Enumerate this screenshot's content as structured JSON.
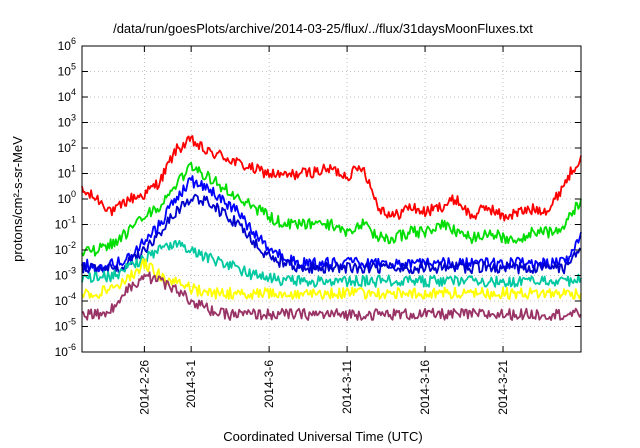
{
  "chart_data": {
    "type": "line",
    "title": "/data/run/goesPlots/archive/2014-03-25/flux/../flux/31daysMoonFluxes.txt",
    "xlabel": "Coordinated Universal Time (UTC)",
    "ylabel": "protons/cm²-s-sr-MeV",
    "yscale": "log",
    "ylim": [
      1e-06,
      1000000.0
    ],
    "xlim": [
      "2014-02-22",
      "2014-03-26"
    ],
    "x_ticks": [
      "2014-2-26",
      "2014-3-1",
      "2014-3-6",
      "2014-3-11",
      "2014-3-16",
      "2014-3-21"
    ],
    "y_ticks": [
      {
        "base": "10",
        "exp": "-6"
      },
      {
        "base": "10",
        "exp": "-5"
      },
      {
        "base": "10",
        "exp": "-4"
      },
      {
        "base": "10",
        "exp": "-3"
      },
      {
        "base": "10",
        "exp": "-2"
      },
      {
        "base": "10",
        "exp": "-1"
      },
      {
        "base": "10",
        "exp": "0"
      },
      {
        "base": "10",
        "exp": "1"
      },
      {
        "base": "10",
        "exp": "2"
      },
      {
        "base": "10",
        "exp": "3"
      },
      {
        "base": "10",
        "exp": "4"
      },
      {
        "base": "10",
        "exp": "5"
      },
      {
        "base": "10",
        "exp": "6"
      }
    ],
    "grid": true,
    "series": [
      {
        "color": "#ff0000",
        "x": [
          "2014-02-22",
          "2014-02-23",
          "2014-02-24",
          "2014-02-25",
          "2014-02-26",
          "2014-02-27",
          "2014-02-28",
          "2014-03-01",
          "2014-03-02",
          "2014-03-03",
          "2014-03-04",
          "2014-03-05",
          "2014-03-06",
          "2014-03-07",
          "2014-03-08",
          "2014-03-09",
          "2014-03-10",
          "2014-03-11",
          "2014-03-12",
          "2014-03-13",
          "2014-03-14",
          "2014-03-15",
          "2014-03-16",
          "2014-03-17",
          "2014-03-18",
          "2014-03-19",
          "2014-03-20",
          "2014-03-21",
          "2014-03-22",
          "2014-03-23",
          "2014-03-24",
          "2014-03-25",
          "2014-03-26"
        ],
        "values": [
          2,
          1,
          0.3,
          1,
          1.5,
          5,
          80,
          200,
          70,
          50,
          25,
          15,
          10,
          8,
          10,
          12,
          15,
          8,
          20,
          0.5,
          0.2,
          0.5,
          0.3,
          0.5,
          1,
          0.2,
          0.5,
          0.2,
          0.3,
          0.4,
          0.4,
          5,
          50
        ]
      },
      {
        "color": "#00dd00",
        "x": [
          "2014-02-22",
          "2014-02-23",
          "2014-02-24",
          "2014-02-25",
          "2014-02-26",
          "2014-02-27",
          "2014-02-28",
          "2014-03-01",
          "2014-03-02",
          "2014-03-03",
          "2014-03-04",
          "2014-03-05",
          "2014-03-06",
          "2014-03-07",
          "2014-03-08",
          "2014-03-09",
          "2014-03-10",
          "2014-03-11",
          "2014-03-12",
          "2014-03-13",
          "2014-03-14",
          "2014-03-15",
          "2014-03-16",
          "2014-03-17",
          "2014-03-18",
          "2014-03-19",
          "2014-03-20",
          "2014-03-21",
          "2014-03-22",
          "2014-03-23",
          "2014-03-24",
          "2014-03-25",
          "2014-03-26"
        ],
        "values": [
          0.01,
          0.01,
          0.02,
          0.05,
          0.2,
          0.5,
          3,
          20,
          8,
          3,
          1,
          0.5,
          0.2,
          0.1,
          0.1,
          0.1,
          0.1,
          0.05,
          0.1,
          0.03,
          0.03,
          0.05,
          0.05,
          0.1,
          0.05,
          0.03,
          0.05,
          0.03,
          0.03,
          0.05,
          0.05,
          0.1,
          1
        ]
      },
      {
        "color": "#0000ff",
        "x": [
          "2014-02-22",
          "2014-02-23",
          "2014-02-24",
          "2014-02-25",
          "2014-02-26",
          "2014-02-27",
          "2014-02-28",
          "2014-03-01",
          "2014-03-02",
          "2014-03-03",
          "2014-03-04",
          "2014-03-05",
          "2014-03-06",
          "2014-03-07",
          "2014-03-08",
          "2014-03-09",
          "2014-03-10",
          "2014-03-11",
          "2014-03-12",
          "2014-03-13",
          "2014-03-14",
          "2014-03-15",
          "2014-03-16",
          "2014-03-17",
          "2014-03-18",
          "2014-03-19",
          "2014-03-20",
          "2014-03-21",
          "2014-03-22",
          "2014-03-23",
          "2014-03-24",
          "2014-03-25",
          "2014-03-26"
        ],
        "values": [
          0.003,
          0.002,
          0.003,
          0.005,
          0.02,
          0.1,
          1,
          5,
          3,
          1,
          0.3,
          0.05,
          0.01,
          0.005,
          0.003,
          0.003,
          0.003,
          0.003,
          0.003,
          0.003,
          0.003,
          0.003,
          0.003,
          0.003,
          0.003,
          0.003,
          0.003,
          0.003,
          0.003,
          0.003,
          0.003,
          0.003,
          0.05
        ]
      },
      {
        "color": "#0000cc",
        "x": [
          "2014-02-22",
          "2014-02-23",
          "2014-02-24",
          "2014-02-25",
          "2014-02-26",
          "2014-02-27",
          "2014-02-28",
          "2014-03-01",
          "2014-03-02",
          "2014-03-03",
          "2014-03-04",
          "2014-03-05",
          "2014-03-06",
          "2014-03-07",
          "2014-03-08",
          "2014-03-09",
          "2014-03-10",
          "2014-03-11",
          "2014-03-12",
          "2014-03-13",
          "2014-03-14",
          "2014-03-15",
          "2014-03-16",
          "2014-03-17",
          "2014-03-18",
          "2014-03-19",
          "2014-03-20",
          "2014-03-21",
          "2014-03-22",
          "2014-03-23",
          "2014-03-24",
          "2014-03-25",
          "2014-03-26"
        ],
        "values": [
          0.002,
          0.002,
          0.002,
          0.003,
          0.01,
          0.05,
          0.3,
          1,
          0.8,
          0.3,
          0.1,
          0.02,
          0.005,
          0.003,
          0.002,
          0.002,
          0.002,
          0.002,
          0.002,
          0.002,
          0.002,
          0.002,
          0.002,
          0.002,
          0.002,
          0.002,
          0.002,
          0.002,
          0.002,
          0.002,
          0.002,
          0.002,
          0.01
        ]
      },
      {
        "color": "#00c8a0",
        "x": [
          "2014-02-22",
          "2014-02-23",
          "2014-02-24",
          "2014-02-25",
          "2014-02-26",
          "2014-02-27",
          "2014-02-28",
          "2014-03-01",
          "2014-03-02",
          "2014-03-03",
          "2014-03-04",
          "2014-03-05",
          "2014-03-06",
          "2014-03-07",
          "2014-03-08",
          "2014-03-09",
          "2014-03-10",
          "2014-03-11",
          "2014-03-12",
          "2014-03-13",
          "2014-03-14",
          "2014-03-15",
          "2014-03-16",
          "2014-03-17",
          "2014-03-18",
          "2014-03-19",
          "2014-03-20",
          "2014-03-21",
          "2014-03-22",
          "2014-03-23",
          "2014-03-24",
          "2014-03-25",
          "2014-03-26"
        ],
        "values": [
          0.0008,
          0.0008,
          0.001,
          0.002,
          0.005,
          0.01,
          0.02,
          0.01,
          0.005,
          0.003,
          0.002,
          0.001,
          0.0008,
          0.0006,
          0.0006,
          0.0006,
          0.0006,
          0.0006,
          0.0006,
          0.0006,
          0.0006,
          0.0006,
          0.0006,
          0.0006,
          0.0006,
          0.0006,
          0.0006,
          0.0006,
          0.0006,
          0.0006,
          0.0006,
          0.0006,
          0.0008
        ]
      },
      {
        "color": "#ffff00",
        "x": [
          "2014-02-22",
          "2014-02-23",
          "2014-02-24",
          "2014-02-25",
          "2014-02-26",
          "2014-02-27",
          "2014-02-28",
          "2014-03-01",
          "2014-03-02",
          "2014-03-03",
          "2014-03-04",
          "2014-03-05",
          "2014-03-06",
          "2014-03-07",
          "2014-03-08",
          "2014-03-09",
          "2014-03-10",
          "2014-03-11",
          "2014-03-12",
          "2014-03-13",
          "2014-03-14",
          "2014-03-15",
          "2014-03-16",
          "2014-03-17",
          "2014-03-18",
          "2014-03-19",
          "2014-03-20",
          "2014-03-21",
          "2014-03-22",
          "2014-03-23",
          "2014-03-24",
          "2014-03-25",
          "2014-03-26"
        ],
        "values": [
          0.0002,
          0.0002,
          0.0003,
          0.0008,
          0.003,
          0.001,
          0.0005,
          0.0003,
          0.0002,
          0.0002,
          0.0002,
          0.0002,
          0.0002,
          0.0002,
          0.0002,
          0.0002,
          0.0002,
          0.0002,
          0.0002,
          0.0002,
          0.0002,
          0.0002,
          0.0002,
          0.0002,
          0.0002,
          0.0002,
          0.0002,
          0.0002,
          0.0002,
          0.0002,
          0.0002,
          0.0002,
          0.0002
        ]
      },
      {
        "color": "#993366",
        "x": [
          "2014-02-22",
          "2014-02-23",
          "2014-02-24",
          "2014-02-25",
          "2014-02-26",
          "2014-02-27",
          "2014-02-28",
          "2014-03-01",
          "2014-03-02",
          "2014-03-03",
          "2014-03-04",
          "2014-03-05",
          "2014-03-06",
          "2014-03-07",
          "2014-03-08",
          "2014-03-09",
          "2014-03-10",
          "2014-03-11",
          "2014-03-12",
          "2014-03-13",
          "2014-03-14",
          "2014-03-15",
          "2014-03-16",
          "2014-03-17",
          "2014-03-18",
          "2014-03-19",
          "2014-03-20",
          "2014-03-21",
          "2014-03-22",
          "2014-03-23",
          "2014-03-24",
          "2014-03-25",
          "2014-03-26"
        ],
        "values": [
          3e-05,
          3e-05,
          5e-05,
          0.0003,
          0.001,
          0.0006,
          0.0003,
          0.0001,
          5e-05,
          3e-05,
          3e-05,
          3e-05,
          3e-05,
          3e-05,
          3e-05,
          3e-05,
          3e-05,
          3e-05,
          3e-05,
          3e-05,
          3e-05,
          3e-05,
          3e-05,
          3e-05,
          3e-05,
          3e-05,
          3e-05,
          3e-05,
          3e-05,
          3e-05,
          3e-05,
          3e-05,
          3e-05
        ]
      }
    ]
  }
}
